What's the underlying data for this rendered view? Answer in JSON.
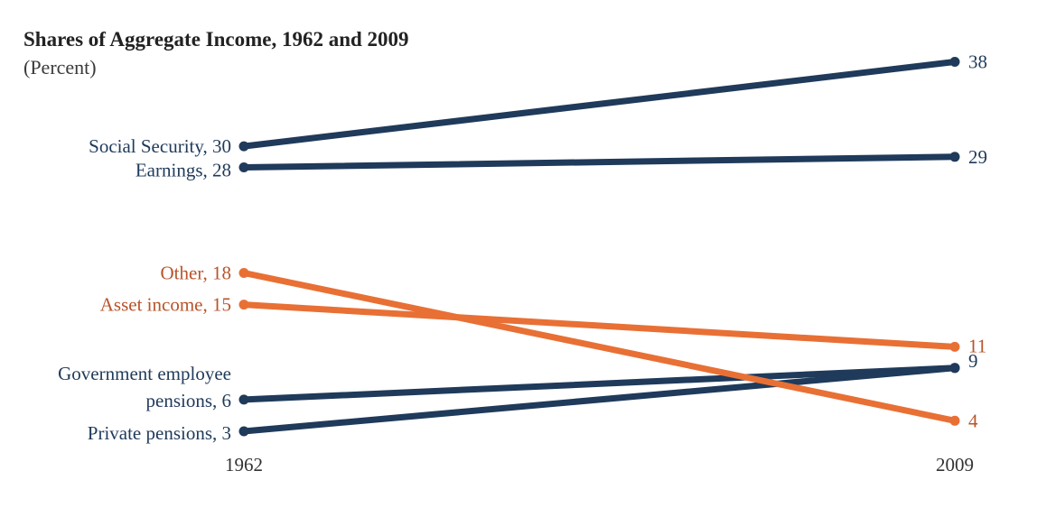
{
  "colors": {
    "navy": "#1f3a5a",
    "orange": "#e87035",
    "orange_label": "#b8532a",
    "axis_text": "#333333"
  },
  "chart_data": {
    "type": "line",
    "title": "Shares of Aggregate Income, 1962 and 2009",
    "subtitle": "(Percent)",
    "x": [
      "1962",
      "2009"
    ],
    "ylim": [
      0,
      40
    ],
    "series": [
      {
        "name": "Social Security",
        "values": [
          30,
          38
        ],
        "color": "navy",
        "label_start": "Social Security, 30",
        "label_end": "38"
      },
      {
        "name": "Earnings",
        "values": [
          28,
          29
        ],
        "color": "navy",
        "label_start": "Earnings, 28",
        "label_end": "29"
      },
      {
        "name": "Other",
        "values": [
          18,
          4
        ],
        "color": "orange",
        "label_start": "Other, 18",
        "label_end": "4"
      },
      {
        "name": "Asset income",
        "values": [
          15,
          11
        ],
        "color": "orange",
        "label_start": "Asset income, 15",
        "label_end": "11"
      },
      {
        "name": "Government employee pensions",
        "values": [
          6,
          9
        ],
        "color": "navy",
        "label_start": [
          "Government employee",
          "pensions, 6"
        ],
        "label_end": "9"
      },
      {
        "name": "Private pensions",
        "values": [
          3,
          9
        ],
        "color": "navy",
        "label_start": "Private pensions, 3",
        "label_end": ""
      }
    ]
  }
}
